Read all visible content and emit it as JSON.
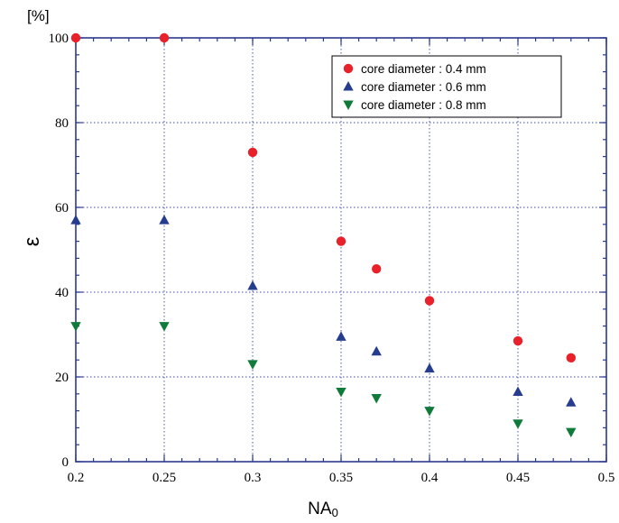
{
  "chart_data": {
    "type": "scatter",
    "title": "",
    "xlabel_main": "NA",
    "xlabel_sub": "0",
    "ylabel": "ε",
    "yunit": "[%]",
    "xlim": [
      0.2,
      0.5
    ],
    "ylim": [
      0,
      100
    ],
    "x_ticks": [
      "0.2",
      "0.25",
      "0.3",
      "0.35",
      "0.4",
      "0.45",
      "0.5"
    ],
    "x_tick_values": [
      0.2,
      0.25,
      0.3,
      0.35,
      0.4,
      0.45,
      0.5
    ],
    "y_ticks": [
      "0",
      "20",
      "40",
      "60",
      "80",
      "100"
    ],
    "y_tick_values": [
      0,
      20,
      40,
      60,
      80,
      100
    ],
    "grid": true,
    "legend_position": "top-right",
    "series": [
      {
        "name": "core diameter : 0.4 mm",
        "marker": "circle",
        "color": "#e8212b",
        "x": [
          0.2,
          0.25,
          0.3,
          0.35,
          0.37,
          0.4,
          0.45,
          0.48
        ],
        "y": [
          100,
          100,
          73,
          52,
          45.5,
          38,
          28.5,
          24.5
        ]
      },
      {
        "name": "core diameter : 0.6 mm",
        "marker": "triangle-up",
        "color": "#263d8f",
        "x": [
          0.2,
          0.25,
          0.3,
          0.35,
          0.37,
          0.4,
          0.45,
          0.48
        ],
        "y": [
          57,
          57,
          41.5,
          29.5,
          26,
          22,
          16.5,
          14
        ]
      },
      {
        "name": "core diameter : 0.8 mm",
        "marker": "triangle-down",
        "color": "#0f7a3a",
        "x": [
          0.2,
          0.25,
          0.3,
          0.35,
          0.37,
          0.4,
          0.45,
          0.48
        ],
        "y": [
          32,
          32,
          23,
          16.5,
          15,
          12,
          9,
          7
        ]
      }
    ]
  }
}
